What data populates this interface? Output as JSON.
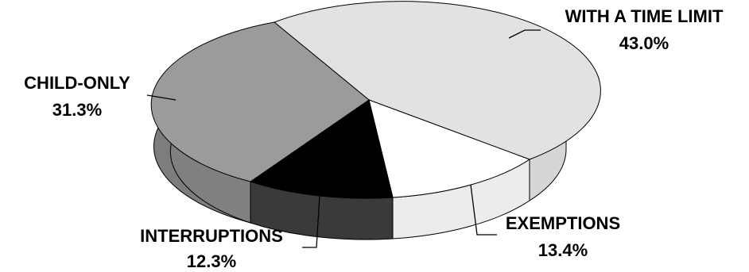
{
  "colors": {
    "with_a_time_limit": "#e2e2e2",
    "child_only": "#9b9b9b",
    "interruptions": "#000000",
    "exemptions": "#ffffff",
    "outline": "#000000"
  },
  "chart_data": {
    "type": "pie",
    "style": "3d",
    "title": "",
    "slices": [
      {
        "label": "WITH A TIME LIMIT",
        "value_label": "43.0%",
        "value": 43.0,
        "color_key": "with_a_time_limit"
      },
      {
        "label": "EXEMPTIONS",
        "value_label": "13.4%",
        "value": 13.4,
        "color_key": "exemptions"
      },
      {
        "label": "INTERRUPTIONS",
        "value_label": "12.3%",
        "value": 12.3,
        "color_key": "interruptions"
      },
      {
        "label": "CHILD-ONLY",
        "value_label": "31.3%",
        "value": 31.3,
        "color_key": "child_only"
      }
    ]
  }
}
